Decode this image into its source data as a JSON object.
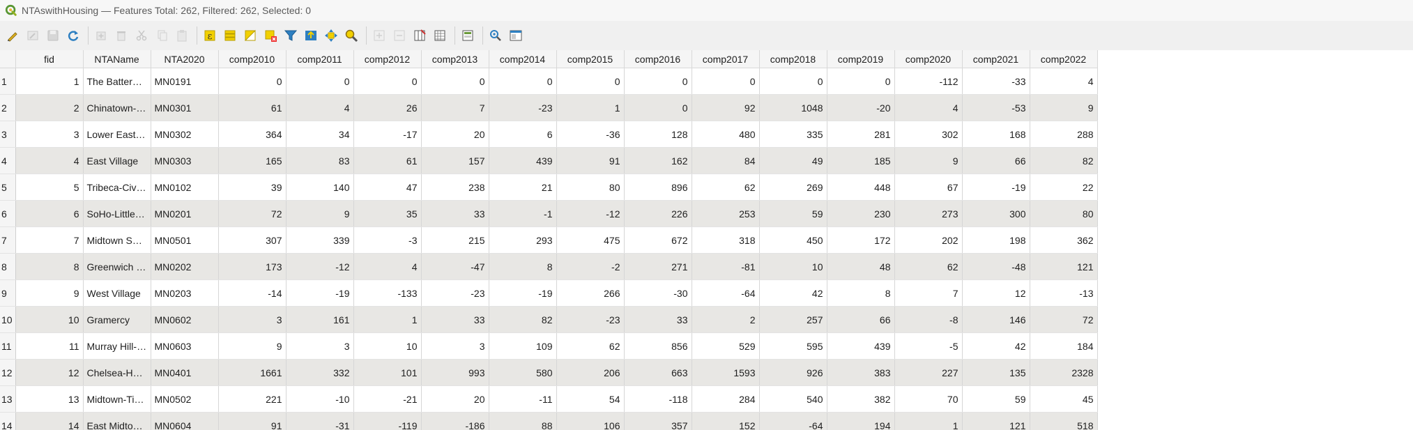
{
  "window": {
    "title": "NTAswithHousing — Features Total: 262, Filtered: 262, Selected: 0"
  },
  "toolbar": {
    "buttons": [
      "toggle-editing-icon",
      "multi-edit-icon",
      "save-edits-icon",
      "reload-icon",
      "sep",
      "add-feature-icon",
      "delete-feature-icon",
      "cut-icon",
      "copy-icon",
      "paste-icon",
      "sep",
      "expression-select-icon",
      "select-all-icon",
      "invert-selection-icon",
      "deselect-all-icon",
      "filter-select-icon",
      "move-selection-top-icon",
      "pan-to-selected-icon",
      "zoom-to-selected-icon",
      "sep",
      "new-field-icon",
      "delete-field-icon",
      "organize-columns-icon",
      "field-calculator-icon",
      "sep",
      "conditional-formatting-icon",
      "sep",
      "actions-icon",
      "dock-icon"
    ]
  },
  "table": {
    "columns": [
      "fid",
      "NTAName",
      "NTA2020",
      "comp2010",
      "comp2011",
      "comp2012",
      "comp2013",
      "comp2014",
      "comp2015",
      "comp2016",
      "comp2017",
      "comp2018",
      "comp2019",
      "comp2020",
      "comp2021",
      "comp2022"
    ],
    "rows": [
      [
        "1",
        "1",
        "The Battery-Go…",
        "MN0191",
        "0",
        "0",
        "0",
        "0",
        "0",
        "0",
        "0",
        "0",
        "0",
        "0",
        "-112",
        "-33",
        "4"
      ],
      [
        "2",
        "2",
        "Chinatown-Two…",
        "MN0301",
        "61",
        "4",
        "26",
        "7",
        "-23",
        "1",
        "0",
        "92",
        "1048",
        "-20",
        "4",
        "-53",
        "9"
      ],
      [
        "3",
        "3",
        "Lower East Side",
        "MN0302",
        "364",
        "34",
        "-17",
        "20",
        "6",
        "-36",
        "128",
        "480",
        "335",
        "281",
        "302",
        "168",
        "288"
      ],
      [
        "4",
        "4",
        "East Village",
        "MN0303",
        "165",
        "83",
        "61",
        "157",
        "439",
        "91",
        "162",
        "84",
        "49",
        "185",
        "9",
        "66",
        "82"
      ],
      [
        "5",
        "5",
        "Tribeca-Civic Ce…",
        "MN0102",
        "39",
        "140",
        "47",
        "238",
        "21",
        "80",
        "896",
        "62",
        "269",
        "448",
        "67",
        "-19",
        "22"
      ],
      [
        "6",
        "6",
        "SoHo-Little Ital…",
        "MN0201",
        "72",
        "9",
        "35",
        "33",
        "-1",
        "-12",
        "226",
        "253",
        "59",
        "230",
        "273",
        "300",
        "80"
      ],
      [
        "7",
        "7",
        "Midtown South…",
        "MN0501",
        "307",
        "339",
        "-3",
        "215",
        "293",
        "475",
        "672",
        "318",
        "450",
        "172",
        "202",
        "198",
        "362"
      ],
      [
        "8",
        "8",
        "Greenwich Villa…",
        "MN0202",
        "173",
        "-12",
        "4",
        "-47",
        "8",
        "-2",
        "271",
        "-81",
        "10",
        "48",
        "62",
        "-48",
        "121"
      ],
      [
        "9",
        "9",
        "West Village",
        "MN0203",
        "-14",
        "-19",
        "-133",
        "-23",
        "-19",
        "266",
        "-30",
        "-64",
        "42",
        "8",
        "7",
        "12",
        "-13"
      ],
      [
        "10",
        "10",
        "Gramercy",
        "MN0602",
        "3",
        "161",
        "1",
        "33",
        "82",
        "-23",
        "33",
        "2",
        "257",
        "66",
        "-8",
        "146",
        "72"
      ],
      [
        "11",
        "11",
        "Murray Hill-Kip…",
        "MN0603",
        "9",
        "3",
        "10",
        "3",
        "109",
        "62",
        "856",
        "529",
        "595",
        "439",
        "-5",
        "42",
        "184"
      ],
      [
        "12",
        "12",
        "Chelsea-Hudso…",
        "MN0401",
        "1661",
        "332",
        "101",
        "993",
        "580",
        "206",
        "663",
        "1593",
        "926",
        "383",
        "227",
        "135",
        "2328"
      ],
      [
        "13",
        "13",
        "Midtown-Times…",
        "MN0502",
        "221",
        "-10",
        "-21",
        "20",
        "-11",
        "54",
        "-118",
        "284",
        "540",
        "382",
        "70",
        "59",
        "45"
      ],
      [
        "14",
        "14",
        "East Midtown-T…",
        "MN0604",
        "91",
        "-31",
        "-119",
        "-186",
        "88",
        "106",
        "357",
        "152",
        "-64",
        "194",
        "1",
        "121",
        "518"
      ]
    ]
  }
}
